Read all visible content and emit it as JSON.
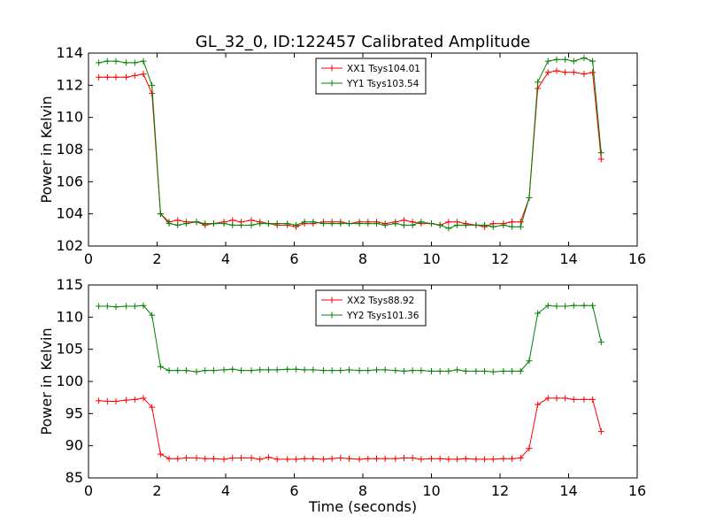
{
  "figure": {
    "title": "GL_32_0, ID:122457 Calibrated Amplitude"
  },
  "chart_data": [
    {
      "type": "line",
      "title": "GL_32_0, ID:122457 Calibrated Amplitude",
      "xlabel": "",
      "ylabel": "Power in Kelvin",
      "xlim": [
        0,
        16
      ],
      "ylim": [
        102,
        114
      ],
      "xticks": [
        0,
        2,
        4,
        6,
        8,
        10,
        12,
        14,
        16
      ],
      "yticks": [
        102,
        104,
        106,
        108,
        110,
        112,
        114
      ],
      "grid": false,
      "legend_position": "top-center",
      "x": [
        0.3,
        0.55,
        0.8,
        1.1,
        1.35,
        1.6,
        1.85,
        2.1,
        2.35,
        2.6,
        2.85,
        3.15,
        3.4,
        3.65,
        3.95,
        4.2,
        4.45,
        4.75,
        5.0,
        5.25,
        5.5,
        5.8,
        6.05,
        6.3,
        6.55,
        6.85,
        7.1,
        7.35,
        7.6,
        7.9,
        8.15,
        8.4,
        8.65,
        8.95,
        9.2,
        9.45,
        9.7,
        10.0,
        10.25,
        10.5,
        10.75,
        11.0,
        11.3,
        11.55,
        11.8,
        12.1,
        12.35,
        12.6,
        12.85,
        13.1,
        13.4,
        13.65,
        13.9,
        14.15,
        14.45,
        14.7,
        14.95
      ],
      "series": [
        {
          "name": "XX1 Tsys104.01",
          "color": "#ff0000",
          "values": [
            112.5,
            112.5,
            112.5,
            112.5,
            112.6,
            112.7,
            111.5,
            104.0,
            103.5,
            103.6,
            103.5,
            103.5,
            103.3,
            103.4,
            103.5,
            103.6,
            103.5,
            103.6,
            103.5,
            103.4,
            103.3,
            103.3,
            103.2,
            103.4,
            103.4,
            103.5,
            103.5,
            103.5,
            103.4,
            103.5,
            103.5,
            103.5,
            103.4,
            103.5,
            103.6,
            103.5,
            103.4,
            103.4,
            103.3,
            103.5,
            103.5,
            103.4,
            103.3,
            103.2,
            103.4,
            103.4,
            103.5,
            103.5,
            105.0,
            111.8,
            112.8,
            112.9,
            112.8,
            112.8,
            112.7,
            112.8,
            107.4
          ]
        },
        {
          "name": "YY1 Tsys103.54",
          "color": "#008000",
          "values": [
            113.4,
            113.5,
            113.5,
            113.4,
            113.4,
            113.5,
            112.0,
            104.0,
            103.4,
            103.3,
            103.4,
            103.5,
            103.4,
            103.4,
            103.4,
            103.3,
            103.3,
            103.3,
            103.4,
            103.4,
            103.4,
            103.4,
            103.3,
            103.5,
            103.5,
            103.4,
            103.4,
            103.4,
            103.4,
            103.4,
            103.4,
            103.4,
            103.3,
            103.4,
            103.3,
            103.3,
            103.5,
            103.4,
            103.3,
            103.1,
            103.3,
            103.3,
            103.3,
            103.3,
            103.2,
            103.3,
            103.2,
            103.2,
            105.0,
            112.2,
            113.5,
            113.6,
            113.6,
            113.5,
            113.7,
            113.5,
            107.8
          ]
        }
      ]
    },
    {
      "type": "line",
      "title": "",
      "xlabel": "Time (seconds)",
      "ylabel": "Power in Kelvin",
      "xlim": [
        0,
        16
      ],
      "ylim": [
        85,
        115
      ],
      "xticks": [
        0,
        2,
        4,
        6,
        8,
        10,
        12,
        14,
        16
      ],
      "yticks": [
        85,
        90,
        95,
        100,
        105,
        110,
        115
      ],
      "grid": false,
      "legend_position": "top-center",
      "x": [
        0.3,
        0.55,
        0.8,
        1.1,
        1.35,
        1.6,
        1.85,
        2.1,
        2.35,
        2.6,
        2.85,
        3.15,
        3.4,
        3.65,
        3.95,
        4.2,
        4.45,
        4.75,
        5.0,
        5.25,
        5.5,
        5.8,
        6.05,
        6.3,
        6.55,
        6.85,
        7.1,
        7.35,
        7.6,
        7.9,
        8.15,
        8.4,
        8.65,
        8.95,
        9.2,
        9.45,
        9.7,
        10.0,
        10.25,
        10.5,
        10.75,
        11.0,
        11.3,
        11.55,
        11.8,
        12.1,
        12.35,
        12.6,
        12.85,
        13.1,
        13.4,
        13.65,
        13.9,
        14.15,
        14.45,
        14.7,
        14.95
      ],
      "series": [
        {
          "name": "XX2 Tsys88.92",
          "color": "#ff0000",
          "values": [
            97.0,
            96.9,
            96.9,
            97.1,
            97.2,
            97.4,
            96.0,
            88.7,
            88.0,
            88.0,
            88.1,
            88.1,
            88.0,
            88.0,
            87.9,
            88.1,
            88.1,
            88.1,
            87.9,
            88.2,
            87.9,
            87.9,
            87.9,
            88.0,
            88.0,
            87.9,
            88.0,
            88.1,
            88.0,
            87.9,
            88.0,
            88.0,
            88.0,
            88.0,
            88.1,
            88.1,
            87.9,
            88.0,
            88.0,
            87.9,
            87.9,
            88.0,
            87.9,
            87.9,
            87.9,
            88.0,
            88.0,
            88.1,
            89.6,
            96.4,
            97.4,
            97.4,
            97.4,
            97.2,
            97.2,
            97.2,
            92.2
          ]
        },
        {
          "name": "YY2 Tsys101.36",
          "color": "#008000",
          "values": [
            111.7,
            111.7,
            111.6,
            111.7,
            111.7,
            111.8,
            110.3,
            102.3,
            101.7,
            101.7,
            101.7,
            101.5,
            101.7,
            101.7,
            101.8,
            101.9,
            101.7,
            101.7,
            101.8,
            101.8,
            101.8,
            101.9,
            101.9,
            101.8,
            101.8,
            101.7,
            101.7,
            101.7,
            101.8,
            101.7,
            101.7,
            101.8,
            101.8,
            101.7,
            101.6,
            101.7,
            101.7,
            101.6,
            101.6,
            101.6,
            101.8,
            101.6,
            101.6,
            101.6,
            101.5,
            101.6,
            101.6,
            101.6,
            103.2,
            110.6,
            111.8,
            111.7,
            111.7,
            111.8,
            111.8,
            111.8,
            106.1
          ]
        }
      ]
    }
  ]
}
